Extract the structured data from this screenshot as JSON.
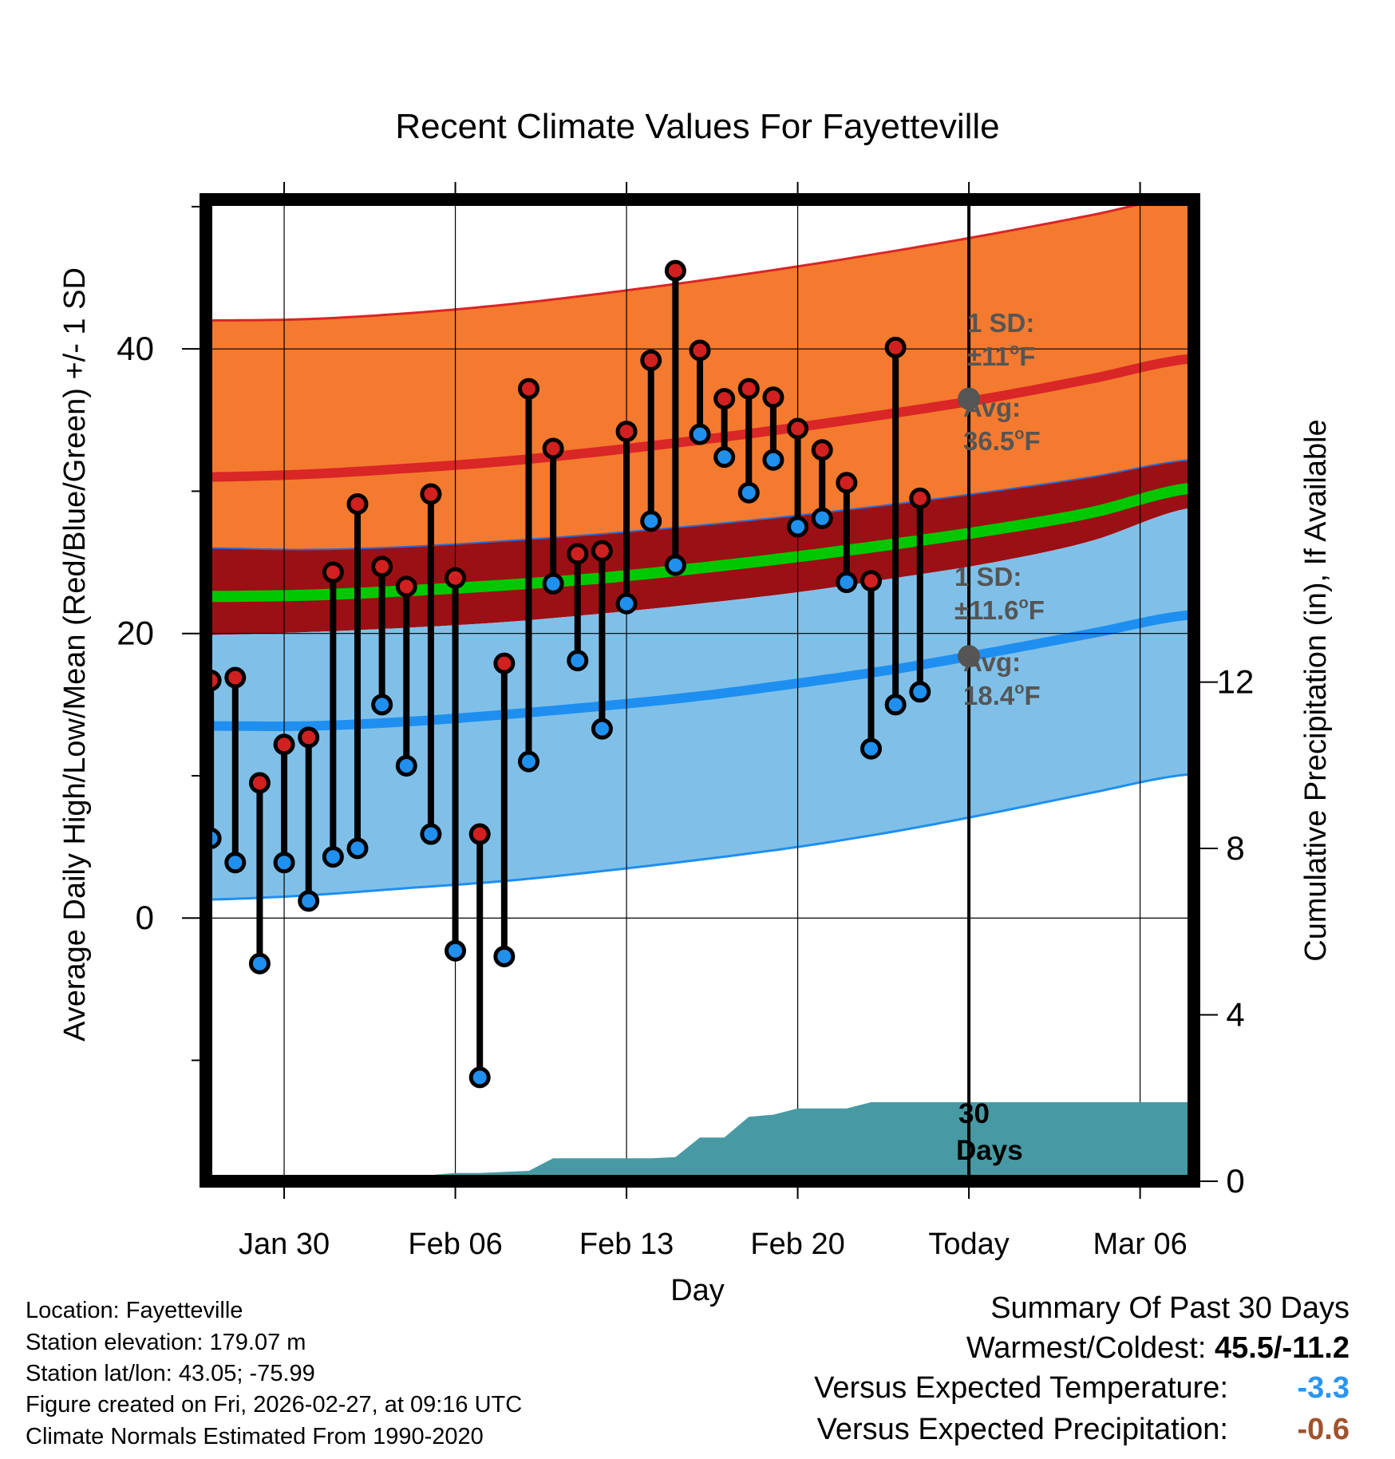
{
  "chart_data": {
    "type": "line",
    "title": "Recent Climate Values For Fayetteville",
    "xlabel": "Day",
    "ylabel": "Average Daily High/Low/Mean (Red/Blue/Green) +/- 1 SD",
    "ylabel_right": "Cumulative Precipitation (in), If Available",
    "x_ticks": [
      {
        "day": 4,
        "label": "Jan 30"
      },
      {
        "day": 11,
        "label": "Feb 06"
      },
      {
        "day": 18,
        "label": "Feb 13"
      },
      {
        "day": 25,
        "label": "Feb 20"
      },
      {
        "day": 32,
        "label": "Today"
      },
      {
        "day": 39,
        "label": "Mar 06"
      }
    ],
    "xlim": [
      0.8,
      41.2
    ],
    "ylim": [
      -18.5,
      50.5
    ],
    "y_ticks": [
      0,
      20,
      40
    ],
    "y_minor_ticks": [
      -10,
      10,
      30,
      50
    ],
    "y2lim": [
      0,
      23.6
    ],
    "y2_ticks": [
      0,
      4,
      8,
      12
    ],
    "today_day": 32,
    "normals": {
      "days": [
        1,
        5,
        9,
        13,
        17,
        21,
        25,
        29,
        33,
        37,
        41
      ],
      "high_upper": [
        42,
        42.1,
        42.5,
        43.1,
        43.9,
        44.8,
        45.8,
        46.9,
        48.1,
        49.4,
        50.8
      ],
      "high_mean": [
        31.0,
        31.2,
        31.6,
        32.1,
        32.8,
        33.6,
        34.5,
        35.5,
        36.6,
        37.9,
        39.3
      ],
      "high_lower": [
        26.0,
        25.9,
        26.1,
        26.5,
        27.0,
        27.6,
        28.3,
        29.1,
        30.0,
        31.0,
        32.2
      ],
      "mean": [
        22.6,
        22.7,
        23.0,
        23.4,
        23.9,
        24.6,
        25.4,
        26.3,
        27.3,
        28.5,
        30.2
      ],
      "low_upper": [
        19.9,
        20.1,
        20.4,
        20.8,
        21.4,
        22.1,
        22.9,
        23.9,
        25.0,
        26.5,
        28.8
      ],
      "low_mean": [
        13.5,
        13.5,
        13.8,
        14.3,
        14.9,
        15.6,
        16.5,
        17.5,
        18.7,
        20.0,
        21.3
      ],
      "low_lower": [
        1.3,
        1.6,
        2.1,
        2.6,
        3.3,
        4.1,
        5.0,
        6.1,
        7.4,
        8.8,
        10.1
      ]
    },
    "series": [
      {
        "name": "Daily High",
        "color": "#d02020",
        "values": [
          16.7,
          16.9,
          9.5,
          12.2,
          12.7,
          24.3,
          29.1,
          24.7,
          23.3,
          29.8,
          23.9,
          5.9,
          17.9,
          37.2,
          33.0,
          25.6,
          25.8,
          34.2,
          39.2,
          45.5,
          39.9,
          36.5,
          37.2,
          36.6,
          34.4,
          32.9,
          30.6,
          23.7,
          40.1,
          29.5
        ]
      },
      {
        "name": "Daily Low",
        "color": "#2090ee",
        "values": [
          5.6,
          3.9,
          -3.2,
          3.9,
          1.2,
          4.3,
          4.9,
          15.0,
          10.7,
          5.9,
          -2.3,
          -11.2,
          -2.7,
          11.0,
          23.5,
          18.1,
          13.3,
          22.1,
          27.9,
          24.8,
          34.0,
          32.4,
          29.9,
          32.2,
          27.5,
          28.1,
          23.6,
          11.9,
          15.0,
          15.9
        ]
      }
    ],
    "precip": {
      "name": "Cumulative Precipitation",
      "days": [
        1,
        9,
        10,
        11,
        12,
        14,
        15,
        16,
        17,
        18,
        19,
        20,
        21,
        22,
        23,
        24,
        25,
        26,
        27,
        28,
        29,
        30,
        31,
        32,
        41.2
      ],
      "values": [
        0,
        0,
        0.15,
        0.2,
        0.2,
        0.25,
        0.55,
        0.55,
        0.55,
        0.55,
        0.55,
        0.58,
        1.05,
        1.05,
        1.55,
        1.6,
        1.75,
        1.75,
        1.75,
        1.9,
        1.9,
        1.9,
        1.9,
        1.9,
        1.9
      ]
    },
    "annotations": [
      {
        "name": "high-sd",
        "line1": "1 SD:",
        "line2": "±11",
        "line2_sup": "o",
        "line2_end": "F"
      },
      {
        "name": "high-avg",
        "line1": "Avg:",
        "line2": "36.5",
        "line2_sup": "o",
        "line2_end": "F",
        "value": 36.5
      },
      {
        "name": "low-sd",
        "line1": "1 SD:",
        "line2": "±11.6",
        "line2_sup": "o",
        "line2_end": "F"
      },
      {
        "name": "low-avg",
        "line1": "Avg:",
        "line2": "18.4",
        "line2_sup": "o",
        "line2_end": "F",
        "value": 18.4
      }
    ],
    "precip_label": {
      "line1": "30",
      "line2": "Days"
    },
    "colors": {
      "high_band": "#f47a2f",
      "high_line": "#d92626",
      "mid_band": "#9b1014",
      "mean_line": "#00c800",
      "low_band": "#80c0e8",
      "low_line": "#1e8ff0",
      "precip_fill": "#479aa3",
      "annotation": "#555555"
    }
  },
  "info": {
    "location": "Location: Fayetteville",
    "elevation": "Station elevation: 179.07 m",
    "latlon": "Station lat/lon: 43.05; -75.99",
    "created": "Figure created on Fri, 2026-02-27, at 09:16 UTC",
    "normals": "Climate Normals Estimated From 1990-2020"
  },
  "summary": {
    "title": "Summary Of Past 30 Days",
    "warmest_label": "Warmest/Coldest:",
    "warmest_value": "45.5/-11.2",
    "temp_label": "Versus Expected Temperature:",
    "temp_value": "-3.3",
    "temp_color": "#2a95ef",
    "precip_label": "Versus Expected Precipitation:",
    "precip_value": "-0.6",
    "precip_color": "#a0522d"
  }
}
